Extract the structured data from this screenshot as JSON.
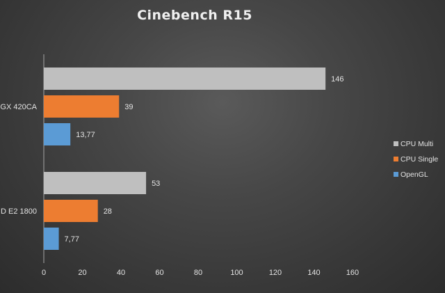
{
  "chart_data": {
    "type": "bar",
    "orientation": "horizontal",
    "title": "Cinebench R15",
    "categories": [
      "GX 420CA",
      "D E2 1800"
    ],
    "series": [
      {
        "name": "CPU Multi",
        "color": "#bfbfbf",
        "values": [
          146,
          53
        ],
        "labels": [
          "146",
          "53"
        ]
      },
      {
        "name": "CPU Single",
        "color": "#ed7d31",
        "values": [
          39,
          28
        ],
        "labels": [
          "39",
          "28"
        ]
      },
      {
        "name": "OpenGL",
        "color": "#5b9bd5",
        "values": [
          13.77,
          7.77
        ],
        "labels": [
          "13,77",
          "7,77"
        ]
      }
    ],
    "xlim": [
      0,
      160
    ],
    "xticks": [
      0,
      20,
      40,
      60,
      80,
      100,
      120,
      140,
      160
    ],
    "grid": false,
    "legend_position": "right"
  }
}
